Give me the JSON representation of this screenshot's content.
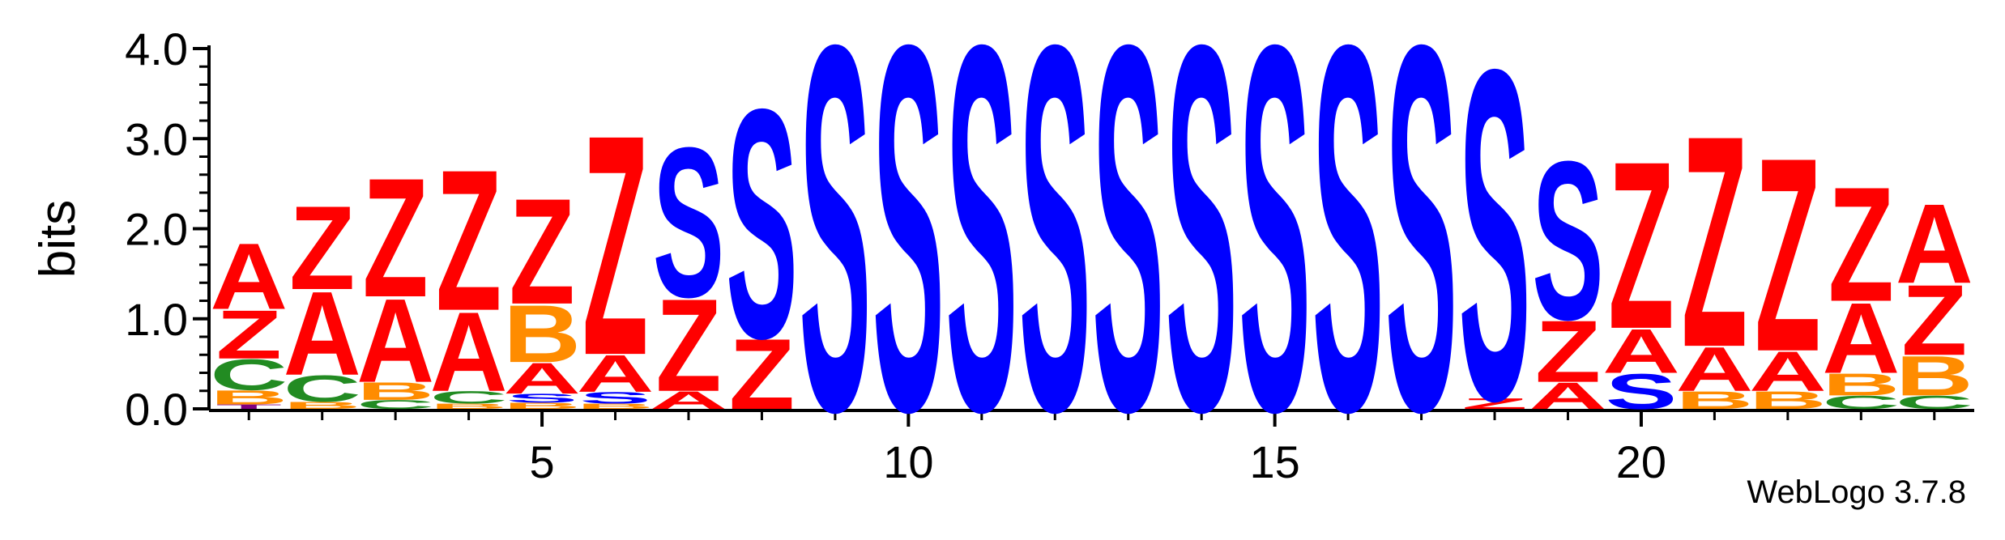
{
  "chart_data": {
    "type": "sequence-logo",
    "title": "",
    "xlabel": "",
    "ylabel": "bits",
    "ylim": [
      0,
      4.0
    ],
    "yticks": [
      "0.0",
      "1.0",
      "2.0",
      "3.0",
      "4.0"
    ],
    "xticks": [
      5,
      10,
      15,
      20
    ],
    "colors": {
      "A": "#ff0000",
      "Z": "#ff0000",
      "S": "#0000ff",
      "C": "#228b22",
      "B": "#ff8c00",
      "T": "#800080"
    },
    "positions": [
      {
        "pos": 1,
        "stack": [
          [
            "T",
            0.05
          ],
          [
            "B",
            0.16
          ],
          [
            "C",
            0.35
          ],
          [
            "Z",
            0.55
          ],
          [
            "A",
            0.75
          ]
        ]
      },
      {
        "pos": 2,
        "stack": [
          [
            "B",
            0.08
          ],
          [
            "C",
            0.3
          ],
          [
            "A",
            0.95
          ],
          [
            "Z",
            0.95
          ]
        ]
      },
      {
        "pos": 3,
        "stack": [
          [
            "C",
            0.1
          ],
          [
            "B",
            0.2
          ],
          [
            "A",
            0.95
          ],
          [
            "Z",
            1.35
          ]
        ]
      },
      {
        "pos": 4,
        "stack": [
          [
            "B",
            0.06
          ],
          [
            "C",
            0.14
          ],
          [
            "A",
            0.9
          ],
          [
            "Z",
            1.6
          ]
        ]
      },
      {
        "pos": 5,
        "stack": [
          [
            "B",
            0.07
          ],
          [
            "S",
            0.1
          ],
          [
            "A",
            0.35
          ],
          [
            "B",
            0.65
          ],
          [
            "Z",
            1.2
          ]
        ]
      },
      {
        "pos": 6,
        "stack": [
          [
            "B",
            0.06
          ],
          [
            "S",
            0.13
          ],
          [
            "A",
            0.42
          ],
          [
            "Z",
            2.5
          ]
        ]
      },
      {
        "pos": 7,
        "stack": [
          [
            "A",
            0.2
          ],
          [
            "Z",
            1.05
          ],
          [
            "S",
            1.7
          ]
        ]
      },
      {
        "pos": 8,
        "stack": [
          [
            "Z",
            0.8
          ],
          [
            "S",
            2.6
          ]
        ]
      },
      {
        "pos": 9,
        "stack": [
          [
            "S",
            4.15
          ]
        ]
      },
      {
        "pos": 10,
        "stack": [
          [
            "S",
            4.15
          ]
        ]
      },
      {
        "pos": 11,
        "stack": [
          [
            "S",
            4.15
          ]
        ]
      },
      {
        "pos": 12,
        "stack": [
          [
            "S",
            4.15
          ]
        ]
      },
      {
        "pos": 13,
        "stack": [
          [
            "S",
            4.15
          ]
        ]
      },
      {
        "pos": 14,
        "stack": [
          [
            "S",
            4.15
          ]
        ]
      },
      {
        "pos": 15,
        "stack": [
          [
            "S",
            4.15
          ]
        ]
      },
      {
        "pos": 16,
        "stack": [
          [
            "S",
            4.15
          ]
        ]
      },
      {
        "pos": 17,
        "stack": [
          [
            "S",
            4.15
          ]
        ]
      },
      {
        "pos": 18,
        "stack": [
          [
            "Z",
            0.12
          ],
          [
            "S",
            3.75
          ]
        ]
      },
      {
        "pos": 19,
        "stack": [
          [
            "A",
            0.3
          ],
          [
            "Z",
            0.7
          ],
          [
            "S",
            1.8
          ]
        ]
      },
      {
        "pos": 20,
        "stack": [
          [
            "S",
            0.4
          ],
          [
            "A",
            0.5
          ],
          [
            "Z",
            1.9
          ]
        ]
      },
      {
        "pos": 21,
        "stack": [
          [
            "B",
            0.2
          ],
          [
            "A",
            0.5
          ],
          [
            "Z",
            2.4
          ]
        ]
      },
      {
        "pos": 22,
        "stack": [
          [
            "B",
            0.2
          ],
          [
            "A",
            0.45
          ],
          [
            "Z",
            2.2
          ]
        ]
      },
      {
        "pos": 23,
        "stack": [
          [
            "C",
            0.15
          ],
          [
            "B",
            0.25
          ],
          [
            "A",
            0.8
          ],
          [
            "Z",
            1.3
          ]
        ]
      },
      {
        "pos": 24,
        "stack": [
          [
            "C",
            0.15
          ],
          [
            "B",
            0.45
          ],
          [
            "Z",
            0.8
          ],
          [
            "A",
            0.9
          ]
        ]
      }
    ]
  },
  "footer": {
    "version": "WebLogo 3.7.8"
  }
}
